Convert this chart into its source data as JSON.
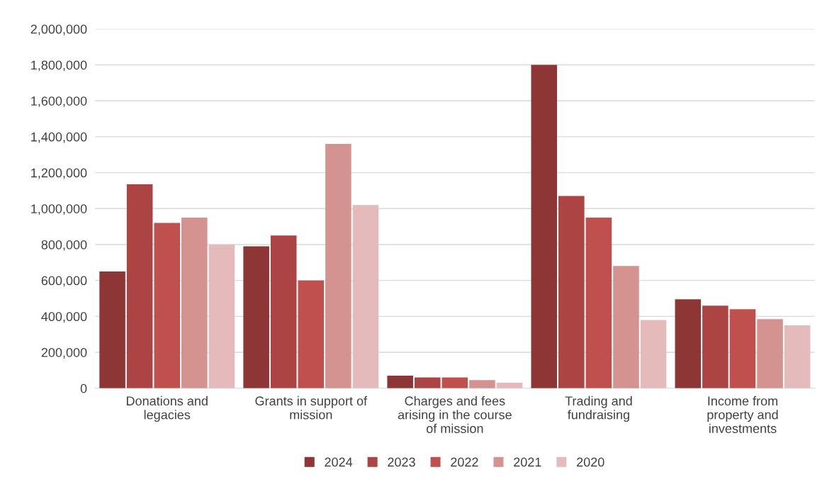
{
  "chart_data": {
    "type": "bar",
    "categories": [
      "Donations and\nlegacies",
      "Grants in support of\nmission",
      "Charges and fees\narising in the course\nof mission",
      "Trading and\nfundraising",
      "Income from\nproperty and\ninvestments"
    ],
    "series": [
      {
        "name": "2024",
        "color": "#8e3535",
        "values": [
          650000,
          790000,
          70000,
          1800000,
          495000
        ]
      },
      {
        "name": "2023",
        "color": "#ab4443",
        "values": [
          1135000,
          850000,
          60000,
          1070000,
          460000
        ]
      },
      {
        "name": "2022",
        "color": "#c0504d",
        "values": [
          920000,
          600000,
          60000,
          950000,
          440000
        ]
      },
      {
        "name": "2021",
        "color": "#d49391",
        "values": [
          950000,
          1360000,
          45000,
          680000,
          385000
        ]
      },
      {
        "name": "2020",
        "color": "#e4bbba",
        "values": [
          800000,
          1020000,
          30000,
          380000,
          350000
        ]
      }
    ],
    "ylim": [
      0,
      2000000
    ],
    "yticks": [
      {
        "value": 0,
        "label": "0"
      },
      {
        "value": 200000,
        "label": "200,000"
      },
      {
        "value": 400000,
        "label": "400,000"
      },
      {
        "value": 600000,
        "label": "600,000"
      },
      {
        "value": 800000,
        "label": "800,000"
      },
      {
        "value": 1000000,
        "label": "1,000,000"
      },
      {
        "value": 1200000,
        "label": "1,200,000"
      },
      {
        "value": 1400000,
        "label": "1,400,000"
      },
      {
        "value": 1600000,
        "label": "1,600,000"
      },
      {
        "value": 1800000,
        "label": "1,800,000"
      },
      {
        "value": 2000000,
        "label": "2,000,000"
      }
    ],
    "grid": "y",
    "legend": "bottom"
  }
}
